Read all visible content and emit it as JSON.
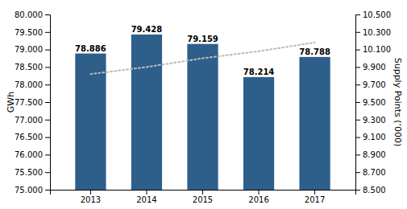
{
  "chart_data": {
    "type": "bar",
    "categories": [
      "2013",
      "2014",
      "2015",
      "2016",
      "2017"
    ],
    "series": [
      {
        "type": "bar",
        "color": "#2E5F8A",
        "data_labels": true,
        "values": [
          78.886,
          79.428,
          79.159,
          78.214,
          78.788
        ]
      },
      {
        "type": "line",
        "axis": "y2",
        "color": "#BBBBBB",
        "line_style": "dotted",
        "values": [
          9.82,
          9.9,
          10.0,
          10.08,
          10.18
        ]
      }
    ],
    "y_label": "GWh",
    "y2_label": "Supply Points (‘000)",
    "ylim": [
      75.0,
      80.0
    ],
    "yticks": [
      {
        "value": 75.0,
        "label": "75.000"
      },
      {
        "value": 75.5,
        "label": "75.500"
      },
      {
        "value": 76.0,
        "label": "76.000"
      },
      {
        "value": 76.5,
        "label": "76.500"
      },
      {
        "value": 77.0,
        "label": "77.000"
      },
      {
        "value": 77.5,
        "label": "77.500"
      },
      {
        "value": 78.0,
        "label": "78.000"
      },
      {
        "value": 78.5,
        "label": "78.500"
      },
      {
        "value": 79.0,
        "label": "79.000"
      },
      {
        "value": 79.5,
        "label": "79.500"
      },
      {
        "value": 80.0,
        "label": "80.000"
      }
    ],
    "y2lim": [
      8.5,
      10.5
    ],
    "y2ticks": [
      {
        "value": 8.5,
        "label": "8.500"
      },
      {
        "value": 8.7,
        "label": "8.700"
      },
      {
        "value": 8.9,
        "label": "8.900"
      },
      {
        "value": 9.1,
        "label": "9.100"
      },
      {
        "value": 9.3,
        "label": "9.300"
      },
      {
        "value": 9.5,
        "label": "9.500"
      },
      {
        "value": 9.7,
        "label": "9.700"
      },
      {
        "value": 9.9,
        "label": "9.900"
      },
      {
        "value": 10.1,
        "label": "10.100"
      },
      {
        "value": 10.3,
        "label": "10.300"
      },
      {
        "value": 10.5,
        "label": "10.500"
      }
    ],
    "grid": false
  }
}
